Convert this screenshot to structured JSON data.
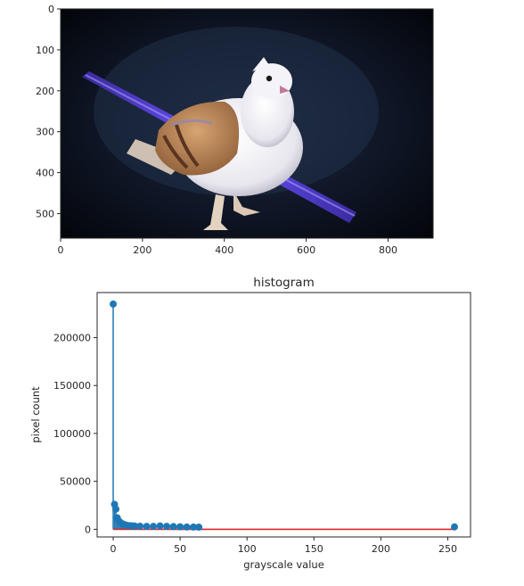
{
  "chart_data": [
    {
      "type": "image",
      "content": "photo: white-and-brown pigeon standing on dark ground beside a glowing purple stick",
      "xlim": [
        0,
        910
      ],
      "ylim": [
        560,
        0
      ],
      "xticks": [
        0,
        200,
        400,
        600,
        800
      ],
      "yticks": [
        0,
        100,
        200,
        300,
        400,
        500
      ]
    },
    {
      "type": "stem",
      "title": "histogram",
      "xlabel": "grayscale value",
      "ylabel": "pixel count",
      "xlim": [
        -12,
        267
      ],
      "ylim": [
        -8000,
        247000
      ],
      "xticks": [
        0,
        50,
        100,
        150,
        200,
        250
      ],
      "yticks": [
        0,
        50000,
        100000,
        150000,
        200000
      ],
      "colors": {
        "stem": "#1f77b4",
        "baseline": "#d62728"
      },
      "x": [
        0,
        1,
        2,
        3,
        4,
        5,
        6,
        7,
        8,
        9,
        10,
        12,
        14,
        16,
        20,
        25,
        30,
        35,
        40,
        45,
        50,
        55,
        60,
        64,
        255
      ],
      "values": [
        235000,
        26000,
        21000,
        12000,
        9000,
        7500,
        6500,
        5500,
        5000,
        4500,
        4200,
        3800,
        3600,
        3400,
        3200,
        3000,
        3000,
        3500,
        3000,
        2800,
        2600,
        2400,
        2300,
        2200,
        2500
      ]
    }
  ]
}
